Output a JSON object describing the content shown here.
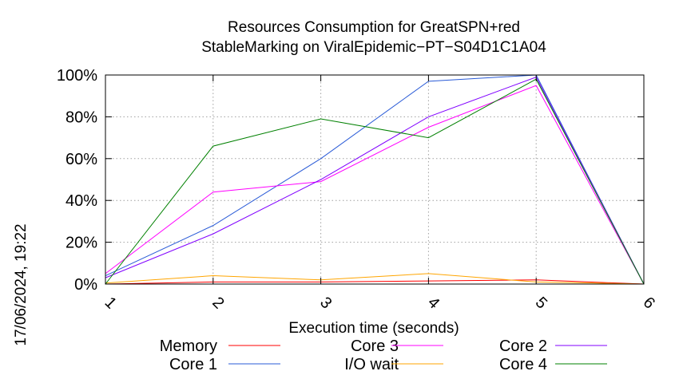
{
  "chart_data": {
    "type": "line",
    "title": [
      "Resources Consumption for GreatSPN+red",
      "StableMarking on ViralEpidemic−PT−S04D1C1A04"
    ],
    "xlabel": "Execution time (seconds)",
    "ylabel": "",
    "x": [
      1,
      2,
      3,
      4,
      5,
      6
    ],
    "xlim": [
      1,
      6
    ],
    "ylim": [
      0,
      100
    ],
    "x_tick_labels": [
      "1",
      "2",
      "3",
      "4",
      "5",
      "6"
    ],
    "y_tick_labels": [
      "0%",
      "20%",
      "40%",
      "60%",
      "80%",
      "100%"
    ],
    "y_ticks": [
      0,
      20,
      40,
      60,
      80,
      100
    ],
    "grid": true,
    "legend_position": "bottom",
    "series": [
      {
        "name": "Memory",
        "color": "#ff0000",
        "values": [
          0,
          1,
          1,
          1.5,
          2,
          0
        ]
      },
      {
        "name": "Core 1",
        "color": "#2a5bd7",
        "values": [
          4,
          28,
          60,
          97,
          100,
          0
        ]
      },
      {
        "name": "Core 3",
        "color": "#ff00ff",
        "values": [
          5,
          44,
          49,
          75,
          95,
          0
        ]
      },
      {
        "name": "I/O wait",
        "color": "#ffa500",
        "values": [
          0.5,
          4,
          2,
          5,
          1,
          0
        ]
      },
      {
        "name": "Core 2",
        "color": "#8000ff",
        "values": [
          3,
          24,
          50,
          80,
          99,
          0
        ]
      },
      {
        "name": "Core 4",
        "color": "#008000",
        "values": [
          0,
          66,
          79,
          70,
          98,
          0
        ]
      }
    ]
  },
  "side_stamp": "17/06/2024, 19:22"
}
